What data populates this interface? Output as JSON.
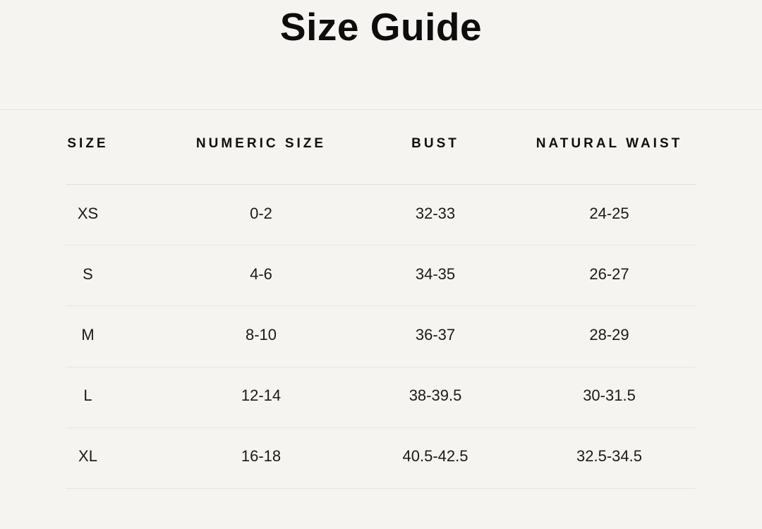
{
  "title": "Size Guide",
  "table": {
    "headers": [
      "SIZE",
      "NUMERIC SIZE",
      "BUST",
      "NATURAL WAIST"
    ],
    "rows": [
      [
        "XS",
        "0-2",
        "32-33",
        "24-25"
      ],
      [
        "S",
        "4-6",
        "34-35",
        "26-27"
      ],
      [
        "M",
        "8-10",
        "36-37",
        "28-29"
      ],
      [
        "L",
        "12-14",
        "38-39.5",
        "30-31.5"
      ],
      [
        "XL",
        "16-18",
        "40.5-42.5",
        "32.5-34.5"
      ]
    ]
  },
  "colors": {
    "background": "#f6f4f1",
    "text": "#1a1a1a",
    "divider": "#ece3d9",
    "top_divider": "#e9e1d7"
  }
}
